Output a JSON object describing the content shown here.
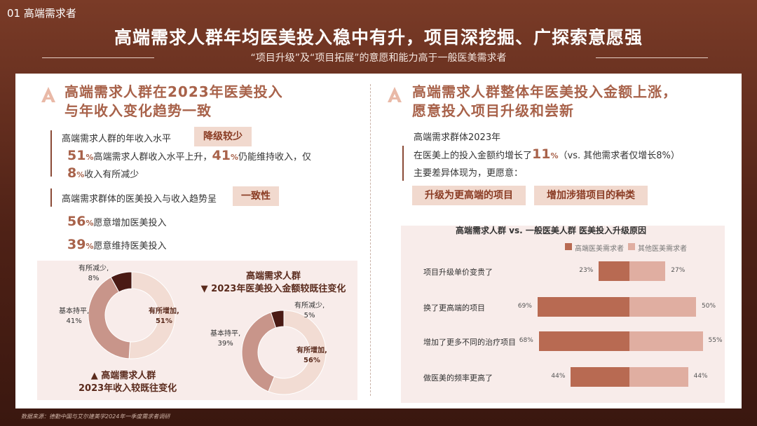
{
  "section_label": "01 高端需求者",
  "title": "高端需求人群年均医美投入稳中有升，项目深挖掘、广探索意愿强",
  "subtitle": "“项目升级”及“项目拓展”的意愿和能力高于一般医美需求者",
  "left": {
    "heading_line1": "高端需求人群在2023年医美投入",
    "heading_line2": "与年收入变化趋势一致",
    "q1": "高端需求人群的年收入水平",
    "tag1": "降级较少",
    "s1_n1": "51",
    "s1_p1": "%",
    "s1_t1": "高端需求人群收入水平上升，",
    "s1_n2": "41",
    "s1_p2": "%",
    "s1_t2": "仍能维持收入，仅",
    "s1_n3": "8",
    "s1_p3": "%",
    "s1_t3": "收入有所减少",
    "q2": "高端需求群体的医美投入与收入趋势呈",
    "tag2": "一致性",
    "s2_n1": "56",
    "s2_p1": "%",
    "s2_t1": "愿意增加医美投入",
    "s2_n2": "39",
    "s2_p2": "%",
    "s2_t2": "愿意维持医美投入"
  },
  "donut_income": {
    "title_line1": "▲ 高端需求人群",
    "title_line2": "2023年收入较既往变化",
    "label_decrease": "有所减少,",
    "value_decrease": "8%",
    "label_maintain": "基本持平,",
    "value_maintain": "41%",
    "label_increase": "有所增加,",
    "value_increase": "51%"
  },
  "donut_invest": {
    "title_line1": "高端需求人群",
    "title_line2": "▼ 2023年医美投入金额较既往变化",
    "label_decrease": "有所减少,",
    "value_decrease": "5%",
    "label_maintain": "基本持平,",
    "value_maintain": "39%",
    "label_increase": "有所增加,",
    "value_increase": "56%"
  },
  "right": {
    "heading_line1": "高端需求人群整体年医美投入金额上涨，",
    "heading_line2": "愿意投入项目升级和尝新",
    "line1": "高端需求群体2023年",
    "line2a": "在医美上的投入金额约增长了",
    "line2n": "11",
    "line2p": "%",
    "line2b": "（vs. 其他需求者仅增长8%）",
    "line3": "主要差异体现为，更愿意：",
    "tag_a": "升级为更高端的项目",
    "tag_b": "增加涉猎项目的种类"
  },
  "chart_data": [
    {
      "type": "pie",
      "title": "▲ 高端需求人群 2023年收入较既往变化",
      "labels": [
        "有所增加",
        "基本持平",
        "有所减少"
      ],
      "values": [
        51,
        41,
        8
      ],
      "colors": [
        "#f2dcd3",
        "#c8958a",
        "#4a1a14"
      ]
    },
    {
      "type": "pie",
      "title": "高端需求人群 ▼ 2023年医美投入金额较既往变化",
      "labels": [
        "有所增加",
        "基本持平",
        "有所减少"
      ],
      "values": [
        56,
        39,
        5
      ],
      "colors": [
        "#f2dcd3",
        "#c8958a",
        "#4a1a14"
      ]
    },
    {
      "type": "bar",
      "title": "高端需求人群 vs. 一般医美人群 医美投入升级原因",
      "categories": [
        "项目升级单价变贵了",
        "换了更高端的项目",
        "增加了更多不同的治疗项目",
        "做医美的频率更高了"
      ],
      "series": [
        {
          "name": "高端医美需求者",
          "values": [
            23,
            69,
            68,
            44
          ],
          "labels": [
            "23%",
            "69%",
            "68%",
            "44%"
          ],
          "color": "#b86a52"
        },
        {
          "name": "其他医美需求者",
          "values": [
            27,
            50,
            55,
            44
          ],
          "labels": [
            "27%",
            "50%",
            "55%",
            "44%"
          ],
          "color": "#e0aea1"
        }
      ]
    }
  ],
  "footer": "数据来源：德勤中国与艾尔建美学2024年一季度需求者调研"
}
